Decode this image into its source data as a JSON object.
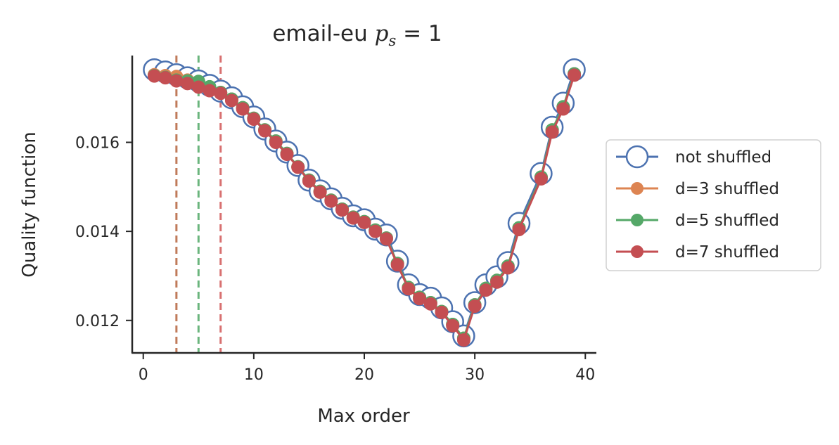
{
  "chart_data": {
    "type": "line",
    "title": {
      "base": "email-eu ",
      "var": "p",
      "sub": "s",
      "eq": " = 1"
    },
    "xlabel": "Max order",
    "ylabel": "Quality function",
    "xlim": [
      -1,
      41
    ],
    "ylim": [
      0.01127,
      0.01795
    ],
    "xticks": [
      0,
      10,
      20,
      30,
      40
    ],
    "yticks": [
      0.012,
      0.014,
      0.016
    ],
    "ytick_labels": [
      "0.012",
      "0.014",
      "0.016"
    ],
    "grid": false,
    "legend_position": "right, outside plot",
    "x": [
      1,
      2,
      3,
      4,
      5,
      6,
      7,
      8,
      9,
      10,
      11,
      12,
      13,
      14,
      15,
      16,
      17,
      18,
      19,
      20,
      21,
      22,
      23,
      24,
      25,
      26,
      27,
      28,
      29,
      30,
      31,
      32,
      33,
      34,
      36,
      37,
      38,
      39
    ],
    "series": [
      {
        "name": "not shuffled",
        "color": "#4c72b0",
        "marker": "hollow-circle",
        "values": [
          0.01763,
          0.01758,
          0.01752,
          0.01745,
          0.01738,
          0.01728,
          0.01715,
          0.017,
          0.0168,
          0.01657,
          0.0163,
          0.01603,
          0.01578,
          0.01548,
          0.01515,
          0.01491,
          0.01473,
          0.01452,
          0.01435,
          0.01426,
          0.01405,
          0.01392,
          0.01333,
          0.0128,
          0.01258,
          0.0125,
          0.01228,
          0.01197,
          0.01165,
          0.0124,
          0.0128,
          0.01298,
          0.0133,
          0.01418,
          0.0153,
          0.01634,
          0.01688,
          0.01763
        ]
      },
      {
        "name": "d=3 shuffled",
        "color": "#dd8452",
        "marker": "filled-circle",
        "values": [
          0.01752,
          0.0175,
          0.01748,
          0.0174,
          0.0173,
          0.0172,
          0.01712,
          0.01697,
          0.01678,
          0.01654,
          0.01628,
          0.01603,
          0.01575,
          0.01545,
          0.01515,
          0.0149,
          0.0147,
          0.0145,
          0.01432,
          0.01422,
          0.01403,
          0.01385,
          0.01328,
          0.01274,
          0.01252,
          0.0124,
          0.0122,
          0.01191,
          0.0116,
          0.01235,
          0.01272,
          0.0129,
          0.01322,
          0.01408,
          0.01522,
          0.01628,
          0.0168,
          0.01754
        ]
      },
      {
        "name": "d=5 shuffled",
        "color": "#55a868",
        "marker": "filled-circle",
        "values": [
          0.0175,
          0.01746,
          0.0174,
          0.01738,
          0.01737,
          0.01725,
          0.01712,
          0.01697,
          0.01678,
          0.01654,
          0.01628,
          0.01603,
          0.01575,
          0.01545,
          0.01515,
          0.0149,
          0.0147,
          0.0145,
          0.01432,
          0.01422,
          0.01403,
          0.01385,
          0.01328,
          0.01274,
          0.01252,
          0.0124,
          0.0122,
          0.01191,
          0.0116,
          0.01235,
          0.01272,
          0.0129,
          0.01322,
          0.01408,
          0.01522,
          0.01628,
          0.0168,
          0.01754
        ]
      },
      {
        "name": "d=7 shuffled",
        "color": "#c44e52",
        "marker": "filled-circle",
        "values": [
          0.01749,
          0.01745,
          0.01738,
          0.01732,
          0.01724,
          0.01716,
          0.0171,
          0.01694,
          0.01675,
          0.01652,
          0.01626,
          0.016,
          0.01573,
          0.01544,
          0.01513,
          0.01488,
          0.01468,
          0.01448,
          0.0143,
          0.0142,
          0.014,
          0.01383,
          0.01325,
          0.01271,
          0.01249,
          0.01237,
          0.01218,
          0.01188,
          0.01156,
          0.01232,
          0.01268,
          0.01286,
          0.01318,
          0.01404,
          0.01518,
          0.01623,
          0.01675,
          0.01751
        ]
      }
    ],
    "vlines": [
      {
        "x": 3,
        "color": "#c07a5a"
      },
      {
        "x": 5,
        "color": "#6ab57d"
      },
      {
        "x": 7,
        "color": "#d87070"
      }
    ]
  }
}
